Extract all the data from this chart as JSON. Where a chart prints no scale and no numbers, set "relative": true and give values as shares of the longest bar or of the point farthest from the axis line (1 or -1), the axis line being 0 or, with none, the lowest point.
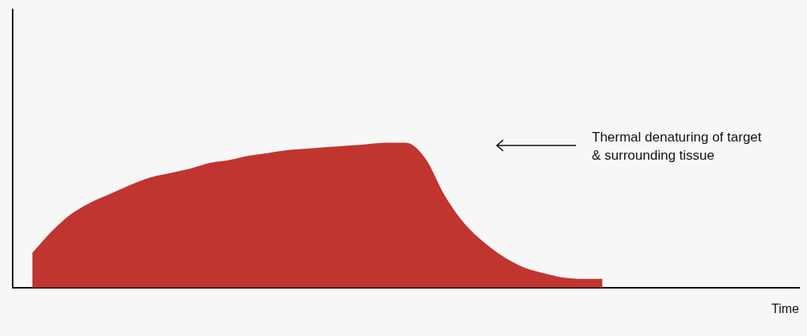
{
  "chart_data": {
    "type": "area",
    "relative": true,
    "xlabel": "Time",
    "categories": [
      null,
      null,
      null,
      null,
      null,
      null,
      null,
      null,
      null,
      null,
      null,
      null,
      null,
      null,
      null,
      null,
      null,
      null,
      null,
      null,
      null,
      null,
      null,
      null,
      null,
      null,
      null,
      null,
      null,
      null,
      null,
      null,
      null,
      null,
      null,
      null,
      null,
      null,
      null,
      null,
      null
    ],
    "series": [
      {
        "color": "#c13530",
        "values": [
          null,
          0.24,
          0.39,
          0.51,
          0.59,
          0.65,
          0.71,
          0.76,
          0.79,
          0.82,
          0.86,
          0.88,
          0.91,
          0.93,
          0.95,
          0.96,
          0.97,
          0.98,
          0.99,
          1,
          1,
          0.89,
          0.63,
          0.44,
          0.31,
          0.21,
          0.14,
          0.1,
          0.07,
          0.06,
          0.06,
          null,
          null,
          null,
          null,
          null,
          null,
          null,
          null,
          null,
          null
        ]
      }
    ],
    "annotations": [
      "Thermal denaturing of target\n& surrounding tissue"
    ],
    "grid": false,
    "legend": false
  }
}
